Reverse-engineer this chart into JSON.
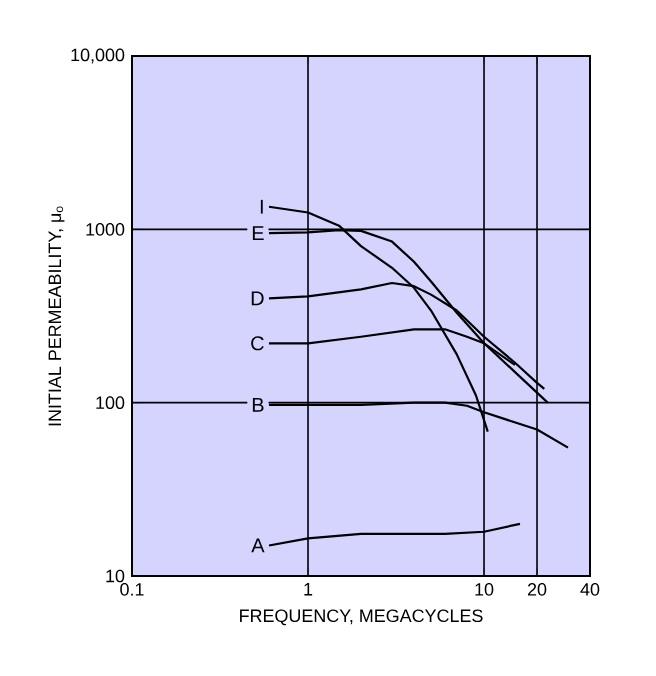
{
  "chart_data": {
    "type": "line",
    "xlabel": "FREQUENCY, MEGACYCLES",
    "ylabel": "INITIAL PERMEABILITY, μ$_{o}$",
    "log": "xy",
    "grid": true,
    "xlim": [
      0.1,
      40
    ],
    "ylim": [
      10,
      10000
    ],
    "xticks": [
      0.1,
      1,
      10,
      20,
      40
    ],
    "yticks": [
      10,
      100,
      1000,
      {
        "value": 10000,
        "label": "10,000"
      }
    ],
    "series": [
      {
        "name": "I",
        "color": "#000000",
        "x": [
          0.6,
          1,
          1.5,
          2,
          3,
          4,
          5,
          7,
          9,
          10.5
        ],
        "values": [
          1350,
          1250,
          1050,
          800,
          600,
          460,
          340,
          190,
          110,
          68
        ]
      },
      {
        "name": "E",
        "color": "#000000",
        "x": [
          0.6,
          1,
          1.5,
          2,
          3,
          4,
          5,
          7,
          10,
          15,
          23
        ],
        "values": [
          950,
          960,
          990,
          980,
          850,
          650,
          500,
          330,
          220,
          150,
          100
        ]
      },
      {
        "name": "D",
        "color": "#000000",
        "x": [
          0.6,
          1,
          2,
          3,
          4,
          5,
          7,
          10,
          15,
          20,
          22
        ],
        "values": [
          400,
          410,
          450,
          490,
          470,
          420,
          340,
          240,
          170,
          130,
          120
        ]
      },
      {
        "name": "C",
        "color": "#000000",
        "x": [
          0.6,
          1,
          2,
          4,
          6,
          8,
          10,
          15
        ],
        "values": [
          220,
          220,
          240,
          265,
          265,
          240,
          220,
          165
        ]
      },
      {
        "name": "B",
        "color": "#000000",
        "x": [
          0.6,
          1,
          2,
          4,
          6,
          8,
          10,
          20,
          30
        ],
        "values": [
          97,
          97,
          97,
          100,
          100,
          96,
          88,
          70,
          55
        ]
      },
      {
        "name": "A",
        "color": "#000000",
        "x": [
          0.6,
          1,
          2,
          4,
          6,
          10,
          16
        ],
        "values": [
          15,
          16.5,
          17.5,
          17.5,
          17.5,
          18,
          20
        ]
      }
    ]
  }
}
